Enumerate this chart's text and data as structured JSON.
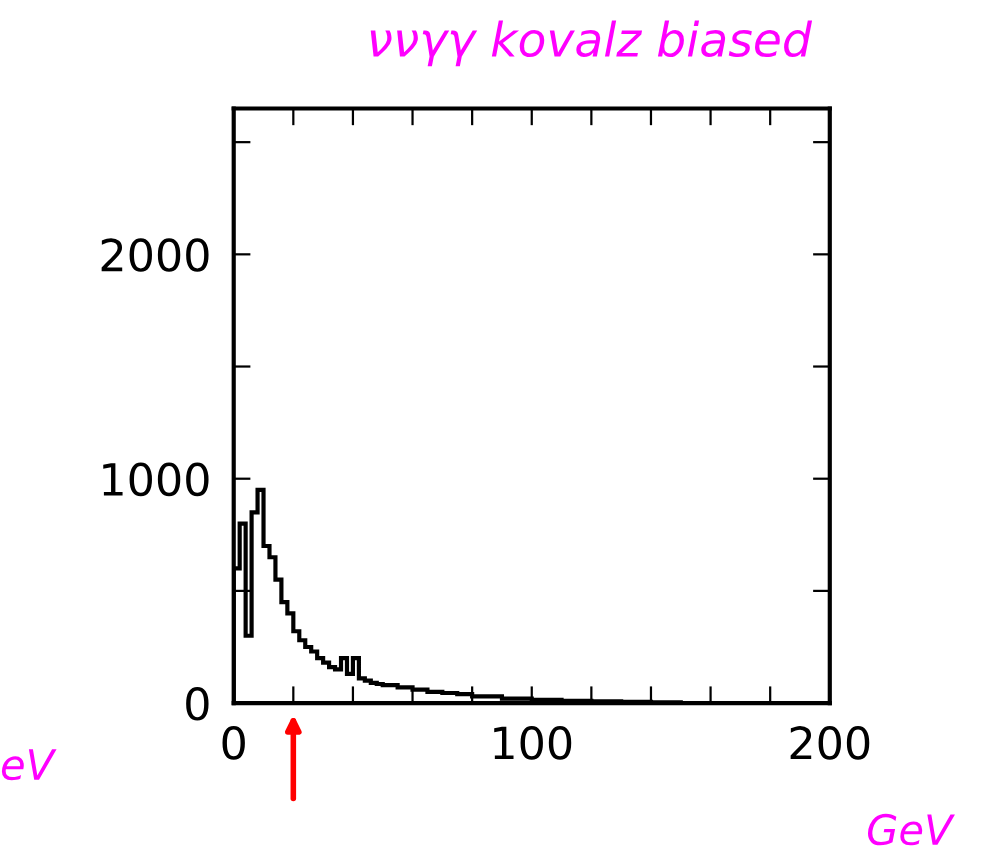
{
  "chart_data": {
    "type": "histogram",
    "title": "ννγγ kovalz biased",
    "bins": [
      0,
      2,
      4,
      6,
      8,
      10,
      12,
      14,
      16,
      18,
      20,
      22,
      24,
      26,
      28,
      30,
      32,
      34,
      36,
      38,
      40,
      42,
      44,
      46,
      48,
      50,
      55,
      60,
      65,
      70,
      75,
      80,
      90,
      100,
      110,
      120,
      130,
      140,
      150
    ],
    "values": [
      600,
      800,
      300,
      850,
      950,
      700,
      650,
      550,
      450,
      400,
      320,
      280,
      250,
      230,
      200,
      180,
      160,
      150,
      200,
      130,
      200,
      110,
      100,
      90,
      85,
      80,
      70,
      60,
      50,
      45,
      40,
      30,
      20,
      15,
      10,
      8,
      5,
      3
    ],
    "color": "#000000",
    "xlim": [
      0,
      200
    ],
    "xticks": [
      0,
      {
        "value": 20,
        "label": null
      },
      {
        "value": 40,
        "label": null
      },
      {
        "value": 60,
        "label": null
      },
      {
        "value": 80,
        "label": null
      },
      100,
      {
        "value": 120,
        "label": null
      },
      {
        "value": 140,
        "label": null
      },
      {
        "value": 160,
        "label": null
      },
      {
        "value": 180,
        "label": null
      },
      200
    ],
    "ylim": [
      0,
      2650
    ],
    "yticks": [
      0,
      {
        "value": 500,
        "label": null
      },
      1000,
      {
        "value": 1500,
        "label": null
      },
      2000,
      {
        "value": 2500,
        "label": null
      }
    ],
    "grid": false,
    "legend": false,
    "annotations": [
      "eV",
      "GeV"
    ]
  }
}
